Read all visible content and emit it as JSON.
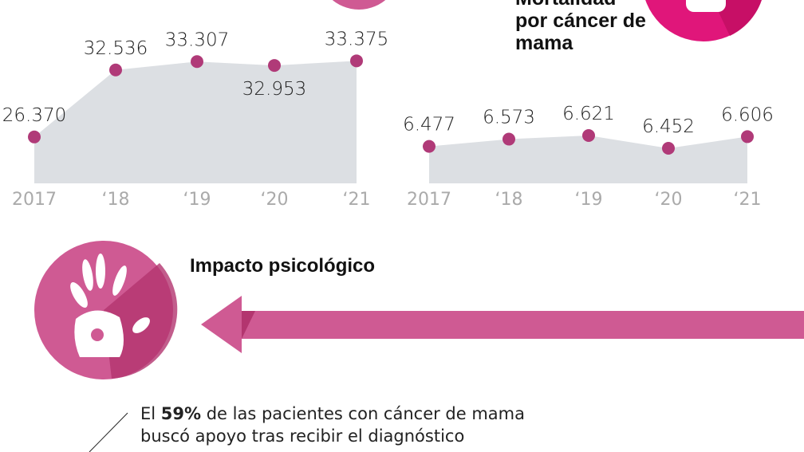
{
  "chart_data": [
    {
      "type": "area",
      "categories": [
        "2017",
        "‘18",
        "‘19",
        "‘20",
        "‘21"
      ],
      "values": [
        26370,
        32536,
        33307,
        32953,
        33375
      ],
      "labels": [
        "26.370",
        "32.536",
        "33.307",
        "32.953",
        "33.375"
      ]
    },
    {
      "type": "area",
      "title": "Mortalidad por cáncer de mama",
      "categories": [
        "2017",
        "‘18",
        "‘19",
        "‘20",
        "‘21"
      ],
      "values": [
        6477,
        6573,
        6621,
        6452,
        6606
      ],
      "labels": [
        "6.477",
        "6.573",
        "6.621",
        "6.452",
        "6.606"
      ]
    }
  ],
  "mortality_title": "Mortalidad por cáncer de mama",
  "section": {
    "title": "Impacto psicológico",
    "stat_pre": "El ",
    "stat_bold": "59%",
    "stat_post": " de las pacientes con cáncer de mama",
    "stat_line2": "buscó apoyo tras recibir el diagnóstico"
  },
  "colors": {
    "point": "#b03a78",
    "area": "#dcdfe3",
    "accent": "#cf5a93",
    "pink": "#e0167a"
  },
  "icons": [
    "hand-icon",
    "breast-icon",
    "arrow-left-icon"
  ]
}
